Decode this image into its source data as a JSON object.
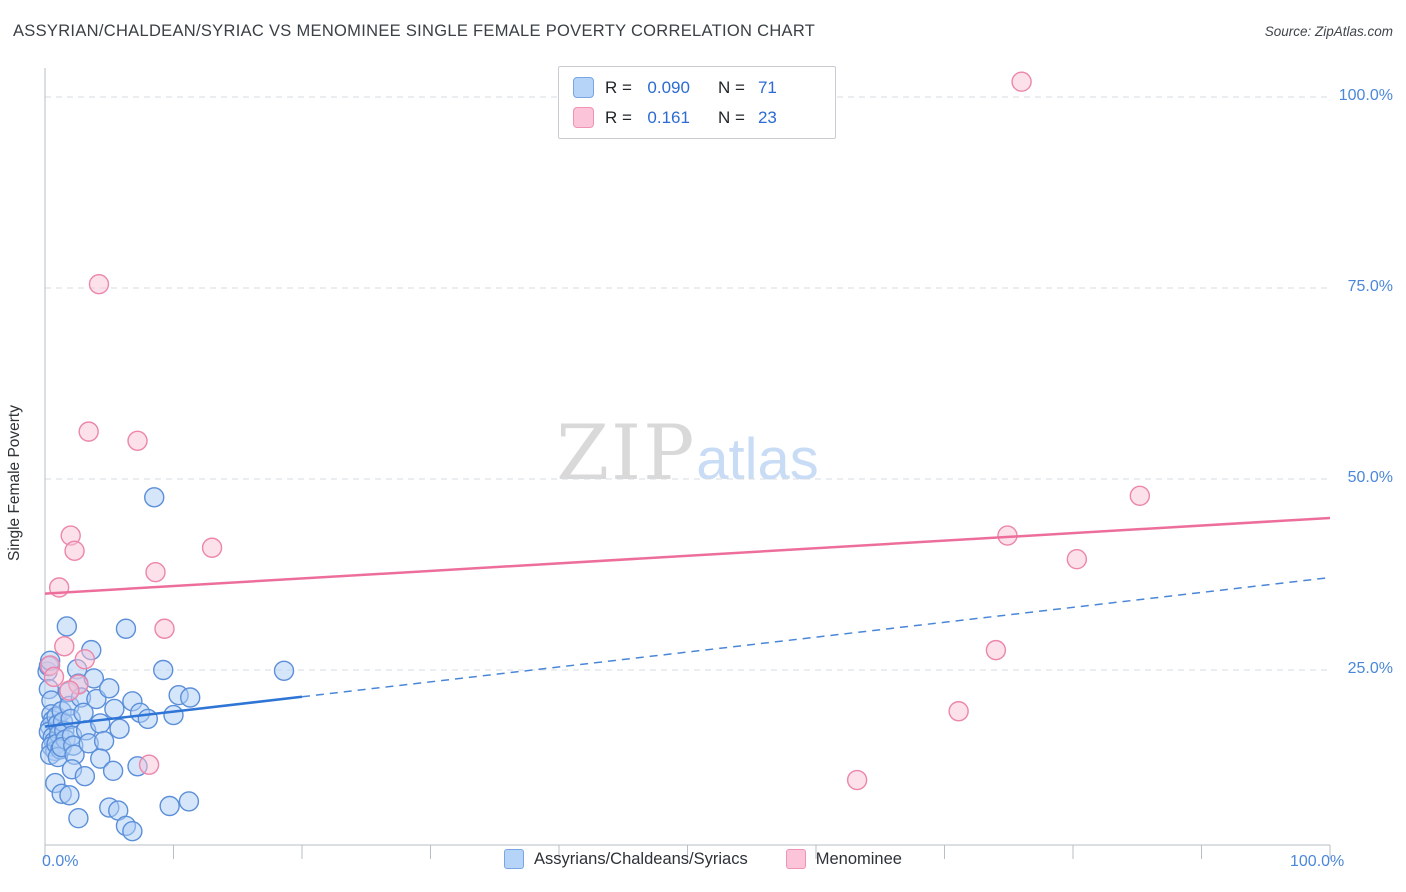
{
  "header": {
    "title": "ASSYRIAN/CHALDEAN/SYRIAC VS MENOMINEE SINGLE FEMALE POVERTY CORRELATION CHART",
    "source": "Source: ZipAtlas.com"
  },
  "legend_box": {
    "rows": [
      {
        "r_label": "R =",
        "r_value": "0.090",
        "n_label": "N =",
        "n_value": "71"
      },
      {
        "r_label": "R =",
        "r_value": "0.161",
        "n_label": "N =",
        "n_value": "23"
      }
    ]
  },
  "watermark": {
    "part1": "ZIP",
    "part2": "atlas"
  },
  "y_axis": {
    "label": "Single Female Poverty",
    "ticks": [
      "100.0%",
      "75.0%",
      "50.0%",
      "25.0%"
    ]
  },
  "x_axis": {
    "min_label": "0.0%",
    "max_label": "100.0%"
  },
  "bottom_legend": {
    "items": [
      {
        "label": "Assyrians/Chaldeans/Syriacs",
        "fill": "#b6d3f8",
        "border": "#78a6e2"
      },
      {
        "label": "Menominee",
        "fill": "#fbc4d9",
        "border": "#f092b4"
      }
    ]
  },
  "chart_data": {
    "type": "scatter",
    "title": "ASSYRIAN/CHALDEAN/SYRIAC VS MENOMINEE SINGLE FEMALE POVERTY CORRELATION CHART",
    "ylabel": "Single Female Poverty",
    "xlim": [
      0,
      100
    ],
    "ylim": [
      0,
      100
    ],
    "grid": "horizontal-dashed",
    "legend_position": "bottom-center",
    "y_gridlines": [
      25,
      50,
      75,
      100
    ],
    "x_ticks": [
      0,
      10,
      20,
      30,
      40,
      50,
      60,
      70,
      80,
      90,
      100
    ],
    "series": [
      {
        "name": "Assyrians/Chaldeans/Syriacs",
        "r": 0.09,
        "n": 71,
        "fill": "#aecdf6",
        "stroke": "#5b8fd9",
        "points": [
          [
            0.2,
            24.8
          ],
          [
            0.3,
            25.5
          ],
          [
            0.4,
            26.2
          ],
          [
            0.3,
            22.5
          ],
          [
            0.5,
            21.0
          ],
          [
            0.5,
            19.2
          ],
          [
            0.6,
            18.4
          ],
          [
            0.4,
            17.6
          ],
          [
            0.3,
            16.9
          ],
          [
            0.6,
            16.2
          ],
          [
            0.7,
            15.6
          ],
          [
            0.5,
            15.0
          ],
          [
            0.8,
            14.4
          ],
          [
            0.4,
            13.9
          ],
          [
            0.9,
            18.9
          ],
          [
            1.0,
            17.9
          ],
          [
            1.1,
            16.6
          ],
          [
            0.9,
            15.3
          ],
          [
            1.2,
            14.6
          ],
          [
            1.0,
            13.6
          ],
          [
            1.3,
            19.6
          ],
          [
            1.4,
            18.2
          ],
          [
            1.5,
            17.0
          ],
          [
            1.6,
            15.9
          ],
          [
            1.3,
            14.9
          ],
          [
            1.7,
            30.7
          ],
          [
            1.8,
            22.1
          ],
          [
            1.9,
            20.3
          ],
          [
            2.0,
            18.6
          ],
          [
            2.1,
            16.4
          ],
          [
            2.2,
            15.1
          ],
          [
            2.3,
            13.9
          ],
          [
            2.5,
            25.1
          ],
          [
            2.6,
            23.2
          ],
          [
            2.8,
            21.4
          ],
          [
            3.0,
            19.4
          ],
          [
            3.2,
            17.1
          ],
          [
            3.4,
            15.4
          ],
          [
            3.6,
            27.6
          ],
          [
            3.8,
            23.9
          ],
          [
            4.0,
            21.2
          ],
          [
            4.3,
            18.0
          ],
          [
            4.6,
            15.7
          ],
          [
            5.0,
            22.6
          ],
          [
            5.4,
            19.9
          ],
          [
            5.8,
            17.3
          ],
          [
            6.3,
            30.4
          ],
          [
            6.8,
            20.9
          ],
          [
            7.4,
            19.4
          ],
          [
            8.0,
            18.6
          ],
          [
            8.5,
            47.6
          ],
          [
            9.2,
            25.0
          ],
          [
            10.4,
            21.7
          ],
          [
            11.3,
            21.4
          ],
          [
            10.0,
            19.1
          ],
          [
            0.8,
            10.2
          ],
          [
            1.3,
            8.8
          ],
          [
            1.9,
            8.6
          ],
          [
            2.6,
            5.6
          ],
          [
            2.1,
            12.0
          ],
          [
            3.1,
            11.1
          ],
          [
            4.3,
            13.4
          ],
          [
            5.0,
            7.0
          ],
          [
            5.7,
            6.6
          ],
          [
            6.3,
            4.6
          ],
          [
            6.8,
            3.9
          ],
          [
            7.2,
            12.4
          ],
          [
            5.3,
            11.8
          ],
          [
            9.7,
            7.2
          ],
          [
            11.2,
            7.8
          ],
          [
            18.6,
            24.9
          ]
        ]
      },
      {
        "name": "Menominee",
        "r": 0.161,
        "n": 23,
        "fill": "#f9c2d6",
        "stroke": "#ec86ab",
        "points": [
          [
            76.0,
            102.0
          ],
          [
            4.2,
            75.5
          ],
          [
            3.4,
            56.2
          ],
          [
            7.2,
            55.0
          ],
          [
            85.2,
            47.8
          ],
          [
            74.9,
            42.6
          ],
          [
            80.3,
            39.5
          ],
          [
            13.0,
            41.0
          ],
          [
            8.6,
            37.8
          ],
          [
            2.0,
            42.6
          ],
          [
            2.3,
            40.6
          ],
          [
            1.1,
            35.8
          ],
          [
            9.3,
            30.4
          ],
          [
            74.0,
            27.6
          ],
          [
            1.5,
            28.1
          ],
          [
            71.1,
            19.6
          ],
          [
            63.2,
            10.6
          ],
          [
            8.1,
            12.6
          ],
          [
            0.4,
            25.6
          ],
          [
            2.6,
            23.1
          ],
          [
            0.7,
            24.1
          ],
          [
            3.1,
            26.4
          ],
          [
            1.9,
            22.3
          ]
        ]
      }
    ],
    "trend_lines": [
      {
        "series": "Menominee",
        "x1": 0,
        "y1": 35.0,
        "x2": 100,
        "y2": 44.9,
        "color": "#ed6e9b",
        "width": 2.5,
        "dash": ""
      },
      {
        "series": "Assyrians/Chaldeans/Syriacs (projection)",
        "x1": 20,
        "y1": 21.5,
        "x2": 100,
        "y2": 37.1,
        "color": "#4a86d8",
        "width": 1.5,
        "dash": "8 6"
      },
      {
        "series": "Assyrians/Chaldeans/Syriacs",
        "x1": 0,
        "y1": 17.6,
        "x2": 20,
        "y2": 21.5,
        "color": "#2e75d6",
        "width": 2.5,
        "dash": ""
      }
    ]
  }
}
